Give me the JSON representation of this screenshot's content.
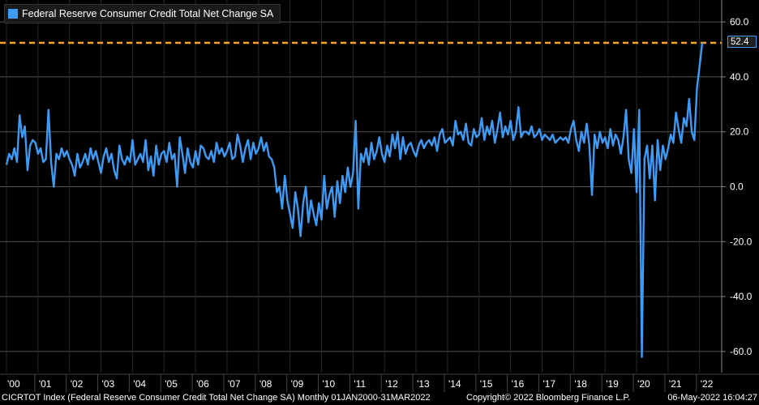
{
  "legend": {
    "label": "Federal Reserve Consumer Credit Total Net Change SA"
  },
  "last_value_label": "52.4",
  "footer": {
    "index": "CICRTOT Index (Federal Reserve Consumer Credit Total Net Change SA)  Monthly 01JAN2000-31MAR2022",
    "copyright": "Copyright© 2022 Bloomberg Finance L.P.",
    "timestamp": "06-May-2022 16:04:27"
  },
  "colors": {
    "series": "#3d9bf5",
    "reference_line": "#f5a623",
    "background": "#000000",
    "grid": "#555555"
  },
  "chart_data": {
    "type": "line",
    "title": "",
    "xlabel": "",
    "ylabel": "",
    "x_range": [
      "2000-01",
      "2022-03"
    ],
    "ylim": [
      -62,
      66
    ],
    "y_ticks": [
      60,
      40,
      20,
      0,
      -20,
      -40,
      -60
    ],
    "y_tick_labels": [
      "60.0",
      "40.0",
      "20.0",
      "0.0",
      "-20.0",
      "-40.0",
      "-60.0"
    ],
    "x_tick_labels": [
      "'00",
      "'01",
      "'02",
      "'03",
      "'04",
      "'05",
      "'06",
      "'07",
      "'08",
      "'09",
      "'10",
      "'11",
      "'12",
      "'13",
      "'14",
      "'15",
      "'16",
      "'17",
      "'18",
      "'19",
      "'20",
      "'21",
      "'22"
    ],
    "reference_line": {
      "value": 52.4,
      "style": "dashed"
    },
    "grid": true,
    "legend_position": "top-left",
    "series": [
      {
        "name": "Federal Reserve Consumer Credit Total Net Change SA",
        "start": "2000-01",
        "frequency": "monthly",
        "values": [
          8,
          12,
          10,
          14,
          9,
          26,
          18,
          22,
          6,
          15,
          17,
          16,
          12,
          14,
          9,
          10,
          28,
          9,
          0,
          12,
          10,
          14,
          11,
          13,
          10,
          8,
          4,
          12,
          7,
          9,
          12,
          8,
          14,
          10,
          13,
          9,
          5,
          11,
          14,
          9,
          12,
          6,
          3,
          15,
          10,
          8,
          11,
          9,
          17,
          8,
          10,
          12,
          9,
          17,
          6,
          11,
          4,
          15,
          8,
          12,
          13,
          9,
          16,
          10,
          12,
          0,
          18,
          12,
          5,
          14,
          9,
          7,
          13,
          8,
          15,
          14,
          11,
          10,
          13,
          9,
          16,
          12,
          14,
          11,
          13,
          16,
          10,
          11,
          19,
          15,
          9,
          14,
          17,
          10,
          16,
          12,
          14,
          18,
          13,
          16,
          11,
          10,
          7,
          -2,
          0,
          -8,
          4,
          -5,
          -10,
          -15,
          -2,
          -8,
          -18,
          -6,
          0,
          -13,
          -5,
          -10,
          -14,
          -6,
          -12,
          4,
          -8,
          -3,
          0,
          -11,
          2,
          -6,
          4,
          -2,
          7,
          0,
          5,
          24,
          -8,
          12,
          9,
          14,
          8,
          16,
          10,
          13,
          18,
          12,
          9,
          15,
          11,
          19,
          14,
          20,
          10,
          18,
          12,
          15,
          16,
          13,
          11,
          15,
          17,
          14,
          16,
          17,
          15,
          18,
          13,
          19,
          21,
          16,
          17,
          18,
          15,
          24,
          19,
          20,
          17,
          23,
          16,
          15,
          21,
          18,
          19,
          25,
          17,
          22,
          19,
          24,
          16,
          21,
          27,
          18,
          22,
          19,
          24,
          17,
          20,
          29,
          18,
          20,
          20,
          19,
          22,
          18,
          19,
          21,
          17,
          19,
          18,
          17,
          19,
          16,
          17,
          18,
          17,
          18,
          16,
          21,
          24,
          17,
          13,
          20,
          16,
          23,
          15,
          -3,
          19,
          14,
          20,
          16,
          18,
          14,
          21,
          15,
          19,
          17,
          12,
          18,
          28,
          10,
          5,
          21,
          -2,
          28,
          -62,
          10,
          15,
          3,
          15,
          -5,
          17,
          6,
          15,
          10,
          14,
          19,
          16,
          27,
          21,
          16,
          25,
          22,
          32,
          20,
          17,
          36,
          44,
          52.4
        ]
      }
    ]
  }
}
